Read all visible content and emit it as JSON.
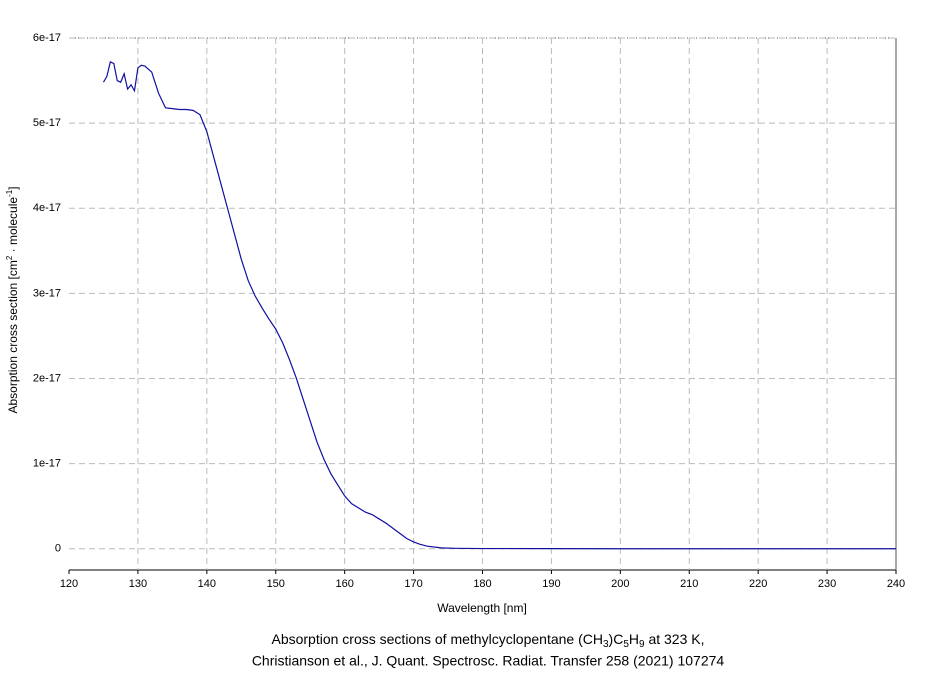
{
  "chart_data": {
    "type": "line",
    "title_parts": [
      "Absorption cross sections of methylcyclopentane (CH",
      "3",
      ")C",
      "5",
      "H",
      "9",
      " at 323 K,"
    ],
    "subtitle": "Christianson et al., J. Quant. Spectrosc. Radiat. Transfer 258 (2021) 107274",
    "xlabel": "Wavelength [nm]",
    "ylabel_parts": [
      "Absorption cross section [cm",
      "2",
      " · molecule",
      "-1",
      "]"
    ],
    "xlim": [
      120,
      240
    ],
    "xticks": [
      120,
      130,
      140,
      150,
      160,
      170,
      180,
      190,
      200,
      210,
      220,
      230,
      240
    ],
    "ylim": [
      -2.5e-18,
      6e-17
    ],
    "yticks": [
      0,
      1e-17,
      2e-17,
      3e-17,
      4e-17,
      5e-17,
      6e-17
    ],
    "grid": true,
    "series": [
      {
        "color": "#1010a0",
        "x": [
          125,
          125.5,
          126,
          126.5,
          127,
          127.5,
          128,
          128.5,
          129,
          129.5,
          130,
          130.5,
          131,
          132,
          133,
          134,
          135,
          136,
          137,
          138,
          139,
          140,
          141,
          142,
          143,
          144,
          145,
          146,
          147,
          148,
          149,
          150,
          151,
          152,
          153,
          154,
          155,
          156,
          157,
          158,
          159,
          160,
          161,
          162,
          163,
          164,
          165,
          166,
          167,
          168,
          169,
          170,
          171,
          172,
          174,
          176,
          180,
          190,
          200,
          210,
          220,
          230,
          240
        ],
        "values": [
          5.48e-17,
          5.55e-17,
          5.72e-17,
          5.7e-17,
          5.5e-17,
          5.48e-17,
          5.58e-17,
          5.4e-17,
          5.45e-17,
          5.38e-17,
          5.65e-17,
          5.68e-17,
          5.67e-17,
          5.6e-17,
          5.35e-17,
          5.18e-17,
          5.17e-17,
          5.16e-17,
          5.16e-17,
          5.15e-17,
          5.1e-17,
          4.9e-17,
          4.6e-17,
          4.3e-17,
          4e-17,
          3.7e-17,
          3.4e-17,
          3.15e-17,
          2.97e-17,
          2.83e-17,
          2.7e-17,
          2.58e-17,
          2.42e-17,
          2.22e-17,
          2e-17,
          1.75e-17,
          1.5e-17,
          1.25e-17,
          1.05e-17,
          8.8e-18,
          7.5e-18,
          6.2e-18,
          5.3e-18,
          4.8e-18,
          4.3e-18,
          4e-18,
          3.5e-18,
          3e-18,
          2.4e-18,
          1.8e-18,
          1.2e-18,
          8e-19,
          5e-19,
          3e-19,
          1e-19,
          5e-20,
          2e-20,
          1e-20,
          0,
          0,
          0,
          0,
          0
        ]
      }
    ]
  }
}
